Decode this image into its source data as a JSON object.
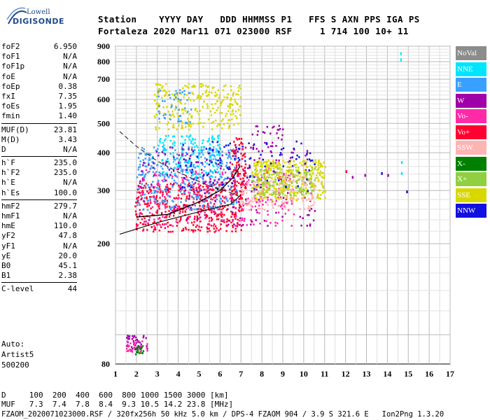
{
  "logo": {
    "line1": "Lowell",
    "line2": "DIGISONDE"
  },
  "header": {
    "line1": "Station    YYYY DAY   DDD HHMMSS P1   FFS S AXN PPS IGA PS",
    "line2": "Fortaleza 2020 Mar11 071 023000 RSF     1 714 100 10+ 11"
  },
  "params_groups": [
    [
      [
        "foF2",
        "6.950"
      ],
      [
        "foF1",
        "N/A"
      ],
      [
        "foF1p",
        "N/A"
      ],
      [
        "foE",
        "N/A"
      ],
      [
        "foEp",
        "0.38"
      ],
      [
        "fxI",
        "7.35"
      ],
      [
        "foEs",
        "1.95"
      ],
      [
        "fmin",
        "1.40"
      ]
    ],
    [
      [
        "MUF(D)",
        "23.81"
      ],
      [
        "M(D)",
        "3.43"
      ],
      [
        "D",
        "N/A"
      ]
    ],
    [
      [
        "h`F",
        "235.0"
      ],
      [
        "h`F2",
        "235.0"
      ],
      [
        "h`E",
        "N/A"
      ],
      [
        "h`Es",
        "100.0"
      ]
    ],
    [
      [
        "hmF2",
        "279.7"
      ],
      [
        "hmF1",
        "N/A"
      ],
      [
        "hmE",
        "110.0"
      ],
      [
        "yF2",
        "47.8"
      ],
      [
        "yF1",
        "N/A"
      ],
      [
        "yE",
        "20.0"
      ],
      [
        "B0",
        "45.1"
      ],
      [
        "B1",
        "2.38"
      ]
    ],
    [
      [
        "C-level",
        "44"
      ]
    ]
  ],
  "auto": {
    "line1": "Auto:",
    "line2": "Artist5",
    "line3": "500200"
  },
  "bottom": {
    "line1": "D     100  200  400  600  800 1000 1500 3000 [km]",
    "line2": "MUF   7.3  7.4  7.8  8.4  9.3 10.5 14.2 23.8 [MHz]",
    "line3": "FZAOM_2020071023000.RSF / 320fx256h 50 kHz 5.0 km / DPS-4 FZAOM 904 / 3.9 S 321.6 E   Ion2Png 1.3.20"
  },
  "legend": [
    {
      "label": "NoVal",
      "color": "#8c8c8c"
    },
    {
      "label": "NNE",
      "color": "#00e5ff"
    },
    {
      "label": "E",
      "color": "#3aa0ff"
    },
    {
      "label": "W",
      "color": "#a000a8"
    },
    {
      "label": "Vo-",
      "color": "#ff2aa8"
    },
    {
      "label": "Vo+",
      "color": "#ff0030"
    },
    {
      "label": "SSW",
      "color": "#ffb4b4"
    },
    {
      "label": "X-",
      "color": "#008000"
    },
    {
      "label": "X+",
      "color": "#90d040"
    },
    {
      "label": "SSE",
      "color": "#d8d800"
    },
    {
      "label": "NNW",
      "color": "#1010e0"
    }
  ],
  "chart_data": {
    "type": "scatter",
    "xlabel": "",
    "ylabel": "",
    "xlim": [
      1,
      17
    ],
    "ylim": [
      80,
      900
    ],
    "x_ticks": [
      "1",
      "2",
      "3",
      "4",
      "5",
      "6",
      "7",
      "8",
      "9",
      "10",
      "11",
      "12",
      "13",
      "14",
      "15",
      "16",
      "17"
    ],
    "y_ticks": [
      "80",
      "200",
      "300",
      "400",
      "500",
      "600",
      "700",
      "800",
      "900"
    ],
    "grid": true,
    "y_scale": "log",
    "clusters": [
      {
        "color": "#ff0030",
        "x": [
          1.9,
          7.1
        ],
        "y": [
          220,
          320
        ],
        "n": 500
      },
      {
        "color": "#ff2aa8",
        "x": [
          2.0,
          9.5
        ],
        "y": [
          230,
          360
        ],
        "n": 280
      },
      {
        "color": "#3aa0ff",
        "x": [
          2.0,
          6.8
        ],
        "y": [
          260,
          420
        ],
        "n": 360
      },
      {
        "color": "#00e5ff",
        "x": [
          3.0,
          6.0
        ],
        "y": [
          330,
          460
        ],
        "n": 160
      },
      {
        "color": "#a000a8",
        "x": [
          2.0,
          10.5
        ],
        "y": [
          230,
          420
        ],
        "n": 200
      },
      {
        "color": "#d8d800",
        "x": [
          7.5,
          11.0
        ],
        "y": [
          280,
          380
        ],
        "n": 420
      },
      {
        "color": "#ffb4b4",
        "x": [
          7.0,
          10.5
        ],
        "y": [
          260,
          340
        ],
        "n": 160
      },
      {
        "color": "#90d040",
        "x": [
          7.5,
          10.5
        ],
        "y": [
          290,
          360
        ],
        "n": 110
      },
      {
        "color": "#1010e0",
        "x": [
          4.0,
          10.5
        ],
        "y": [
          300,
          440
        ],
        "n": 110
      },
      {
        "color": "#d8d800",
        "x": [
          2.8,
          7.0
        ],
        "y": [
          480,
          680
        ],
        "n": 260
      },
      {
        "color": "#3aa0ff",
        "x": [
          3.0,
          4.7
        ],
        "y": [
          500,
          650
        ],
        "n": 50
      },
      {
        "color": "#a000a8",
        "x": [
          7.5,
          9.0
        ],
        "y": [
          400,
          500
        ],
        "n": 30
      },
      {
        "color": "#ff0030",
        "x": [
          6.5,
          7.2
        ],
        "y": [
          300,
          450
        ],
        "n": 80
      },
      {
        "color": "#a000a8",
        "x": [
          1.5,
          2.5
        ],
        "y": [
          90,
          100
        ],
        "n": 40
      },
      {
        "color": "#ff2aa8",
        "x": [
          1.5,
          2.5
        ],
        "y": [
          88,
          96
        ],
        "n": 30
      },
      {
        "color": "#008000",
        "x": [
          1.9,
          2.3
        ],
        "y": [
          86,
          92
        ],
        "n": 18
      }
    ],
    "isolated_points": [
      {
        "x": 12.0,
        "y": 350,
        "color": "#ff0030"
      },
      {
        "x": 12.3,
        "y": 335,
        "color": "#a000a8"
      },
      {
        "x": 12.9,
        "y": 340,
        "color": "#a000a8"
      },
      {
        "x": 13.7,
        "y": 345,
        "color": "#1010e0"
      },
      {
        "x": 14.0,
        "y": 340,
        "color": "#a000a8"
      },
      {
        "x": 14.9,
        "y": 300,
        "color": "#1010e0"
      },
      {
        "x": 14.65,
        "y": 345,
        "color": "#00e5ff"
      },
      {
        "x": 14.65,
        "y": 375,
        "color": "#00e5ff"
      }
    ],
    "cyan_streak": {
      "x": 14.65,
      "y_from": 800,
      "y_to": 860
    },
    "profile_solid": [
      [
        1.2,
        215
      ],
      [
        3.0,
        235
      ],
      [
        5.0,
        255
      ],
      [
        6.5,
        270
      ],
      [
        7.0,
        290
      ]
    ],
    "profile_dashed": [
      [
        1.2,
        470
      ],
      [
        2.0,
        420
      ],
      [
        3.0,
        375
      ],
      [
        4.0,
        345
      ],
      [
        5.5,
        310
      ],
      [
        6.5,
        295
      ],
      [
        7.0,
        285
      ]
    ],
    "trace_black": [
      [
        2.0,
        245
      ],
      [
        3.5,
        250
      ],
      [
        5.0,
        275
      ],
      [
        6.0,
        300
      ],
      [
        6.6,
        330
      ],
      [
        6.95,
        360
      ]
    ]
  }
}
